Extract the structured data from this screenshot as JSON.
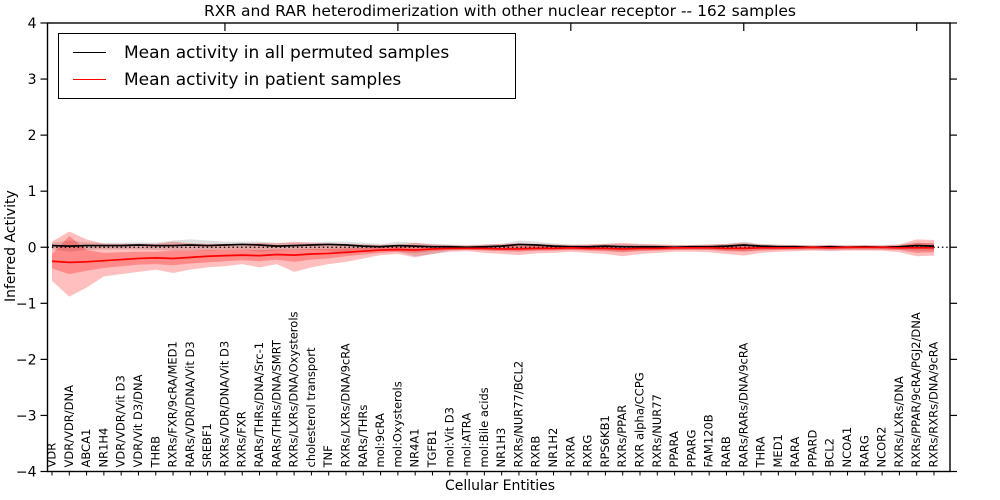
{
  "title": "RXR and RAR heterodimerization with other nuclear receptor -- 162 samples",
  "legend": {
    "items": [
      {
        "label": "Mean activity in all permuted samples",
        "color": "#000000"
      },
      {
        "label": "Mean activity in patient samples",
        "color": "#ff0000"
      }
    ]
  },
  "chart_data": {
    "type": "line",
    "title": "RXR and RAR heterodimerization with other nuclear receptor -- 162 samples",
    "xlabel": "Cellular Entities",
    "ylabel": "Inferred Activity",
    "ylim": [
      -4,
      4
    ],
    "yticks": [
      4,
      3,
      2,
      1,
      0,
      -1,
      -2,
      -3,
      -4
    ],
    "ytick_labels": [
      "4",
      "3",
      "2",
      "1",
      "0",
      "−1",
      "−2",
      "−3",
      "−4"
    ],
    "top_xtick_interval": 10,
    "grid": false,
    "legend_position": "upper left",
    "zero_line": {
      "style": "dotted",
      "color": "#000000",
      "value": 0
    },
    "categories": [
      "VDR",
      "VDR/VDR/DNA",
      "ABCA1",
      "NR1H4",
      "VDR/VDR/Vit D3",
      "VDR/Vit D3/DNA",
      "THRB",
      "RXRs/FXR/9cRA/MED1",
      "RARs/VDR/DNA/Vit D3",
      "SREBF1",
      "RXRs/VDR/DNA/Vit D3",
      "RXRs/FXR",
      "RARs/THRs/DNA/Src-1",
      "RARs/THRs/DNA/SMRT",
      "RXRs/LXRs/DNA/Oxysterols",
      "cholesterol transport",
      "TNF",
      "RXRs/LXRs/DNA/9cRA",
      "RARs/THRs",
      "mol:9cRA",
      "mol:Oxysterols",
      "NR4A1",
      "TGFB1",
      "mol:Vit D3",
      "mol:ATRA",
      "mol:Bile acids",
      "NR1H3",
      "RXRs/NUR77/BCL2",
      "RXRB",
      "NR1H2",
      "RXRA",
      "RXRG",
      "RPS6KB1",
      "RXRs/PPAR",
      "RXR alpha/CCPG",
      "RXRs/NUR77",
      "PPARA",
      "PPARG",
      "FAM120B",
      "RARB",
      "RARs/RARs/DNA/9cRA",
      "THRA",
      "MED1",
      "RARA",
      "PPARD",
      "BCL2",
      "NCOA1",
      "RARG",
      "NCOR2",
      "RXRs/LXRs/DNA",
      "RXRs/PPAR/9cRA/PGJ2/DNA",
      "RXRs/RXRs/DNA/9cRA"
    ],
    "series": [
      {
        "name": "Mean activity in all permuted samples",
        "color": "#000000",
        "band_color": "#000000",
        "band_opacity": 0.13,
        "values": [
          0.03,
          0.02,
          0.03,
          0.03,
          0.03,
          0.04,
          0.03,
          0.03,
          0.04,
          0.03,
          0.04,
          0.05,
          0.04,
          0.02,
          0.03,
          0.04,
          0.05,
          0.04,
          0.02,
          0.01,
          0.03,
          0.02,
          0.01,
          0.01,
          0.0,
          0.01,
          0.02,
          0.05,
          0.04,
          0.02,
          0.01,
          0.01,
          0.02,
          0.01,
          0.01,
          0.01,
          0.0,
          0.01,
          0.01,
          0.02,
          0.04,
          0.02,
          0.01,
          0.01,
          0.0,
          0.01,
          0.0,
          0.01,
          0.0,
          0.01,
          0.03,
          0.02
        ],
        "band_upper": [
          0.08,
          0.12,
          0.09,
          0.08,
          0.08,
          0.09,
          0.08,
          0.12,
          0.14,
          0.12,
          0.1,
          0.1,
          0.1,
          0.08,
          0.08,
          0.09,
          0.1,
          0.1,
          0.08,
          0.06,
          0.1,
          0.08,
          0.06,
          0.05,
          0.04,
          0.05,
          0.06,
          0.12,
          0.1,
          0.07,
          0.05,
          0.05,
          0.06,
          0.06,
          0.05,
          0.05,
          0.04,
          0.04,
          0.05,
          0.06,
          0.1,
          0.06,
          0.05,
          0.04,
          0.04,
          0.04,
          0.04,
          0.04,
          0.04,
          0.05,
          0.08,
          0.07
        ],
        "band_lower": [
          -0.04,
          -0.08,
          -0.05,
          -0.04,
          -0.04,
          -0.04,
          -0.05,
          -0.06,
          -0.06,
          -0.06,
          -0.05,
          -0.04,
          -0.08,
          -0.06,
          -0.05,
          -0.05,
          -0.06,
          -0.12,
          -0.08,
          -0.06,
          -0.08,
          -0.16,
          -0.12,
          -0.06,
          -0.05,
          -0.05,
          -0.06,
          -0.06,
          -0.06,
          -0.05,
          -0.05,
          -0.05,
          -0.06,
          -0.08,
          -0.06,
          -0.05,
          -0.05,
          -0.04,
          -0.05,
          -0.06,
          -0.07,
          -0.05,
          -0.04,
          -0.04,
          -0.04,
          -0.04,
          -0.04,
          -0.04,
          -0.04,
          -0.05,
          -0.06,
          -0.06
        ]
      },
      {
        "name": "Mean activity in patient samples",
        "color": "#ff0000",
        "band_color": "#ff0000",
        "band_opacity": 0.25,
        "inner_band_opacity": 0.28,
        "values": [
          -0.25,
          -0.27,
          -0.26,
          -0.24,
          -0.22,
          -0.2,
          -0.19,
          -0.2,
          -0.18,
          -0.16,
          -0.15,
          -0.14,
          -0.15,
          -0.13,
          -0.14,
          -0.12,
          -0.11,
          -0.09,
          -0.07,
          -0.05,
          -0.04,
          -0.05,
          -0.03,
          -0.02,
          -0.02,
          -0.02,
          -0.03,
          -0.03,
          -0.02,
          -0.02,
          -0.01,
          -0.02,
          -0.02,
          -0.03,
          -0.02,
          -0.02,
          -0.01,
          -0.01,
          -0.01,
          -0.02,
          -0.02,
          -0.01,
          -0.01,
          -0.01,
          0.0,
          -0.01,
          0.0,
          0.0,
          0.0,
          -0.01,
          -0.01,
          -0.01
        ],
        "band_upper": [
          0.1,
          0.28,
          0.14,
          0.06,
          0.06,
          0.06,
          0.06,
          0.1,
          0.07,
          0.06,
          0.06,
          0.06,
          0.08,
          0.07,
          0.1,
          0.08,
          0.07,
          0.06,
          0.05,
          0.04,
          0.05,
          0.08,
          0.05,
          0.04,
          0.03,
          0.05,
          0.06,
          0.07,
          0.06,
          0.05,
          0.04,
          0.05,
          0.06,
          0.08,
          0.06,
          0.05,
          0.04,
          0.04,
          0.05,
          0.06,
          0.08,
          0.05,
          0.04,
          0.04,
          0.03,
          0.04,
          0.03,
          0.03,
          0.03,
          0.05,
          0.14,
          0.13
        ],
        "band_lower": [
          -0.6,
          -0.88,
          -0.72,
          -0.52,
          -0.48,
          -0.44,
          -0.4,
          -0.46,
          -0.4,
          -0.36,
          -0.34,
          -0.3,
          -0.36,
          -0.3,
          -0.44,
          -0.36,
          -0.3,
          -0.26,
          -0.2,
          -0.14,
          -0.12,
          -0.18,
          -0.12,
          -0.08,
          -0.07,
          -0.1,
          -0.12,
          -0.14,
          -0.11,
          -0.1,
          -0.08,
          -0.1,
          -0.12,
          -0.16,
          -0.12,
          -0.1,
          -0.08,
          -0.08,
          -0.09,
          -0.12,
          -0.15,
          -0.1,
          -0.08,
          -0.07,
          -0.06,
          -0.07,
          -0.06,
          -0.06,
          -0.06,
          -0.09,
          -0.16,
          -0.15
        ],
        "inner_band_upper": [
          -0.12,
          0.2,
          -0.05,
          -0.1,
          -0.09,
          -0.08,
          -0.08,
          -0.06,
          -0.06,
          -0.05,
          -0.05,
          -0.04,
          -0.05,
          -0.04,
          -0.04,
          -0.03,
          -0.03,
          -0.02,
          -0.01,
          0.0,
          0.01,
          0.02,
          0.01,
          0.01,
          0.01,
          0.01,
          0.02,
          0.03,
          0.02,
          0.02,
          0.01,
          0.02,
          0.02,
          0.03,
          0.02,
          0.02,
          0.01,
          0.01,
          0.02,
          0.02,
          0.03,
          0.02,
          0.01,
          0.01,
          0.01,
          0.01,
          0.01,
          0.01,
          0.01,
          0.02,
          0.08,
          0.07
        ],
        "inner_band_lower": [
          -0.38,
          -0.48,
          -0.42,
          -0.37,
          -0.34,
          -0.31,
          -0.3,
          -0.32,
          -0.29,
          -0.27,
          -0.25,
          -0.23,
          -0.25,
          -0.22,
          -0.26,
          -0.22,
          -0.2,
          -0.16,
          -0.13,
          -0.1,
          -0.08,
          -0.1,
          -0.07,
          -0.05,
          -0.04,
          -0.06,
          -0.07,
          -0.08,
          -0.06,
          -0.06,
          -0.05,
          -0.06,
          -0.07,
          -0.09,
          -0.07,
          -0.06,
          -0.05,
          -0.05,
          -0.05,
          -0.07,
          -0.08,
          -0.06,
          -0.05,
          -0.04,
          -0.04,
          -0.04,
          -0.04,
          -0.04,
          -0.04,
          -0.05,
          -0.1,
          -0.09
        ]
      }
    ]
  }
}
